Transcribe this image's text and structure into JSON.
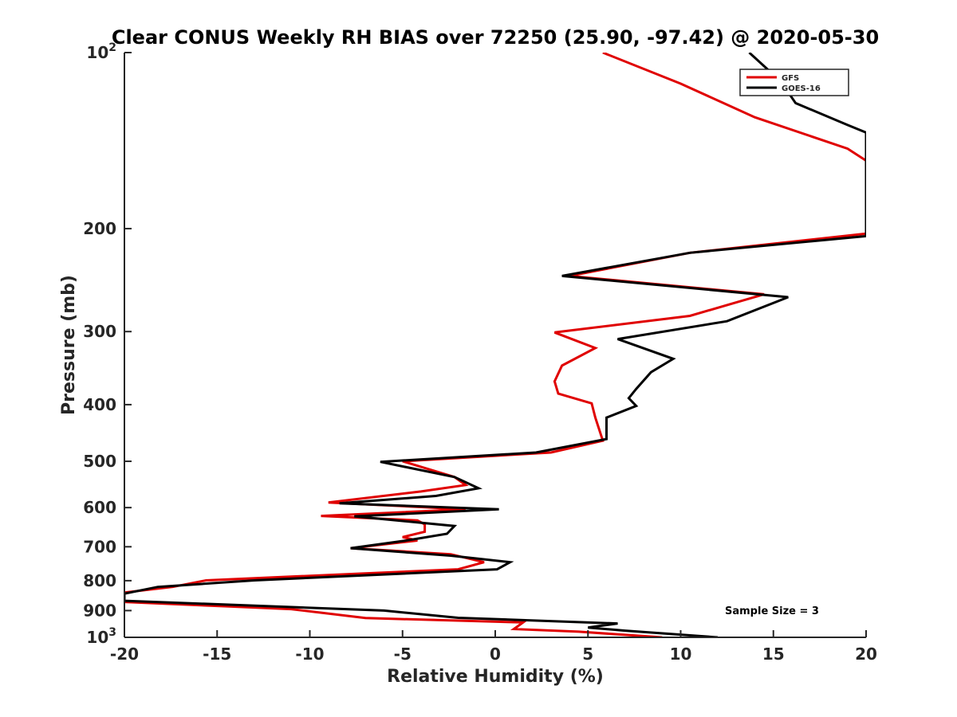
{
  "chart_data": {
    "type": "line",
    "title": "Clear CONUS Weekly RH BIAS over 72250 (25.90, -97.42) @ 2020-05-30",
    "xlabel": "Relative Humidity (%)",
    "ylabel": "Pressure (mb)",
    "xlim": [
      -20,
      20
    ],
    "ylim": [
      100,
      1000
    ],
    "y_scale": "log",
    "y_reversed": true,
    "x_ticks": [
      "-20",
      "-15",
      "-10",
      "-5",
      "0",
      "5",
      "10",
      "15",
      "20"
    ],
    "y_ticks": [
      {
        "value": 100,
        "base": "10",
        "exp": "2"
      },
      {
        "value": 200,
        "label": "200"
      },
      {
        "value": 300,
        "label": "300"
      },
      {
        "value": 400,
        "label": "400"
      },
      {
        "value": 500,
        "label": "500"
      },
      {
        "value": 600,
        "label": "600"
      },
      {
        "value": 700,
        "label": "700"
      },
      {
        "value": 800,
        "label": "800"
      },
      {
        "value": 900,
        "label": "900"
      },
      {
        "value": 1000,
        "base": "10",
        "exp": "3"
      }
    ],
    "grid": false,
    "legend_position": "top-right",
    "annotation": "Sample Size = 3",
    "series": [
      {
        "name": "GFS",
        "color": "#e00000",
        "points": [
          [
            5.8,
            100
          ],
          [
            10,
            113
          ],
          [
            14,
            129
          ],
          [
            19,
            146
          ],
          [
            20,
            153
          ],
          [
            20,
            204
          ],
          [
            10.5,
            220
          ],
          [
            4,
            241
          ],
          [
            14.5,
            259
          ],
          [
            10.5,
            282
          ],
          [
            3.2,
            301
          ],
          [
            5.4,
            320
          ],
          [
            3.6,
            343
          ],
          [
            3.2,
            365
          ],
          [
            3.4,
            383
          ],
          [
            5.2,
            398
          ],
          [
            5.4,
            421
          ],
          [
            5.8,
            461
          ],
          [
            3,
            483
          ],
          [
            -5,
            500
          ],
          [
            -2.2,
            532
          ],
          [
            -1.6,
            549
          ],
          [
            -4,
            563
          ],
          [
            -9,
            588
          ],
          [
            -1.6,
            604
          ],
          [
            -9.4,
            620
          ],
          [
            -4.2,
            631
          ],
          [
            -3.8,
            641
          ],
          [
            -3.8,
            660
          ],
          [
            -5,
            674
          ],
          [
            -4.2,
            683
          ],
          [
            -7.8,
            704
          ],
          [
            -2.4,
            721
          ],
          [
            -0.6,
            744
          ],
          [
            -2,
            765
          ],
          [
            -15.6,
            799
          ],
          [
            -17.4,
            820
          ],
          [
            -20,
            838
          ],
          [
            -20,
            870
          ],
          [
            -11,
            895
          ],
          [
            -7,
            927
          ],
          [
            1.5,
            943
          ],
          [
            1,
            968
          ],
          [
            4.5,
            978
          ],
          [
            9,
            1000
          ]
        ]
      },
      {
        "name": "GOES-16",
        "color": "#000000",
        "points": [
          [
            13.7,
            100
          ],
          [
            15.4,
            112
          ],
          [
            16.2,
            122
          ],
          [
            19,
            133
          ],
          [
            20,
            137
          ],
          [
            20,
            206
          ],
          [
            10.5,
            220
          ],
          [
            3.6,
            241
          ],
          [
            15.8,
            262
          ],
          [
            12.5,
            288
          ],
          [
            6.6,
            309
          ],
          [
            9.6,
            334
          ],
          [
            8.4,
            352
          ],
          [
            7.6,
            376
          ],
          [
            7.2,
            390
          ],
          [
            7.6,
            402
          ],
          [
            6,
            421
          ],
          [
            6,
            458
          ],
          [
            2.2,
            483
          ],
          [
            -6.2,
            501
          ],
          [
            -2.2,
            532
          ],
          [
            -0.9,
            556
          ],
          [
            -3.2,
            573
          ],
          [
            -8.4,
            590
          ],
          [
            0.2,
            604
          ],
          [
            -7.6,
            621
          ],
          [
            -2.2,
            645
          ],
          [
            -2.6,
            665
          ],
          [
            -4.8,
            683
          ],
          [
            -7.8,
            704
          ],
          [
            -2.4,
            725
          ],
          [
            0.8,
            744
          ],
          [
            0.1,
            765
          ],
          [
            -13,
            799
          ],
          [
            -18.2,
            820
          ],
          [
            -20,
            842
          ],
          [
            -20,
            866
          ],
          [
            -6,
            900
          ],
          [
            -2,
            926
          ],
          [
            6.6,
            947
          ],
          [
            5,
            962
          ],
          [
            7,
            974
          ],
          [
            12,
            1000
          ]
        ]
      }
    ]
  }
}
